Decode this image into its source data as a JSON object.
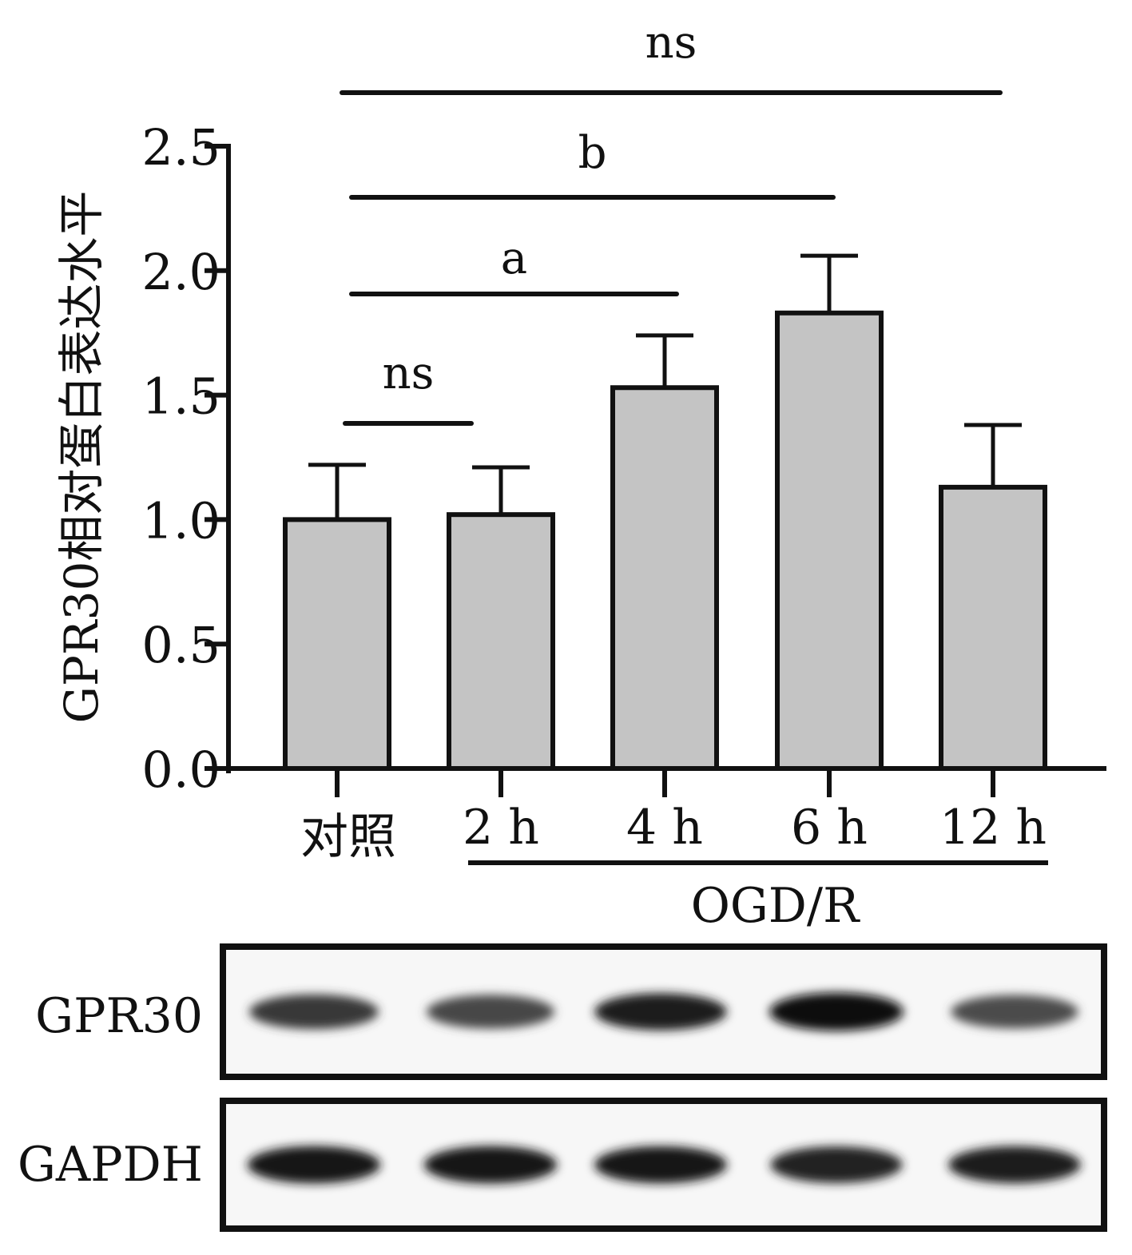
{
  "chart_data": {
    "type": "bar",
    "ylabel": "GPR30相对蛋白表达水平",
    "ylim": [
      0,
      2.5
    ],
    "yticks": [
      "0.0",
      "0.5",
      "1.0",
      "1.5",
      "2.0",
      "2.5"
    ],
    "categories": [
      "对照",
      "2 h",
      "4 h",
      "6 h",
      "12 h"
    ],
    "values": [
      1.0,
      1.02,
      1.53,
      1.83,
      1.13
    ],
    "errors": [
      0.22,
      0.19,
      0.21,
      0.23,
      0.25
    ],
    "bar_color": "#c4c4c4",
    "group_label": "OGD/R",
    "significance": [
      {
        "from": 0,
        "to": 1,
        "label": "ns"
      },
      {
        "from": 0,
        "to": 2,
        "label": "a"
      },
      {
        "from": 0,
        "to": 3,
        "label": "b"
      },
      {
        "from": 0,
        "to": 4,
        "label": "ns"
      }
    ]
  },
  "blot": {
    "rows": [
      {
        "label": "GPR30",
        "intensities": [
          0.78,
          0.72,
          0.92,
          1.0,
          0.7
        ]
      },
      {
        "label": "GAPDH",
        "intensities": [
          0.95,
          0.95,
          0.93,
          0.9,
          0.92
        ]
      }
    ]
  }
}
